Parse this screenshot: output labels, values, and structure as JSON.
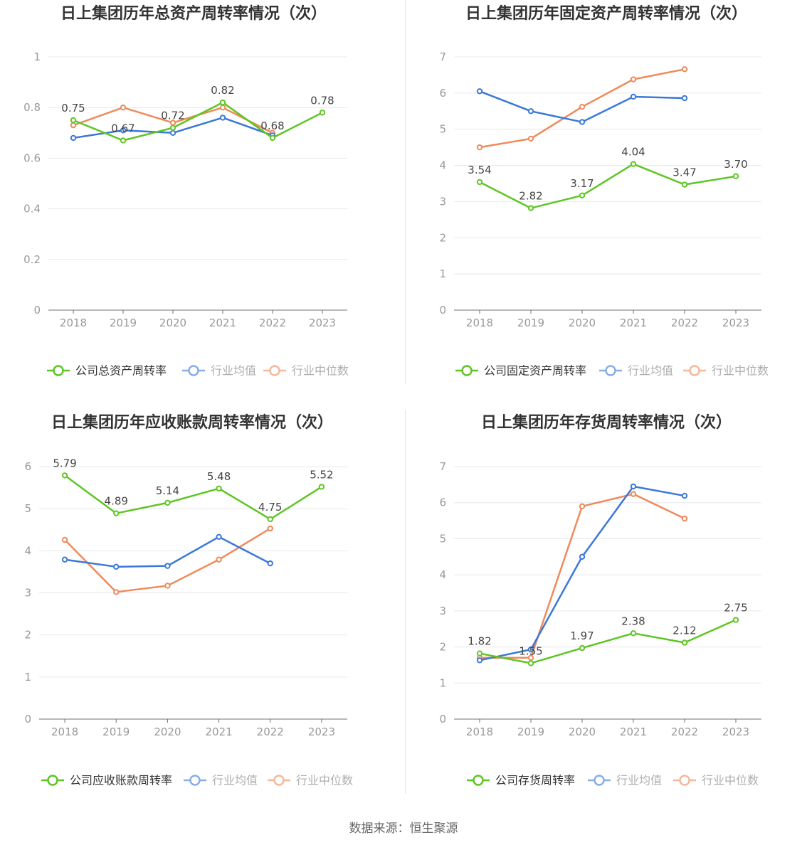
{
  "source": "数据来源：恒生聚源",
  "colors": {
    "company": "#5ec623",
    "industry_avg": "#3b78d8",
    "industry_median": "#ef8a5a",
    "grid": "#e6e8ef",
    "axis": "#999999",
    "title": "#333333"
  },
  "legend": {
    "industry_avg": "行业均值",
    "industry_median": "行业中位数"
  },
  "chart_data": [
    {
      "type": "line",
      "title": "日上集团历年总资产周转率情况（次）",
      "categories": [
        "2018",
        "2019",
        "2020",
        "2021",
        "2022",
        "2023"
      ],
      "ylim": [
        0,
        1
      ],
      "yticks": [
        "0",
        "0.2",
        "0.4",
        "0.6",
        "0.8",
        "1"
      ],
      "legend_placement": "bottom",
      "grid": true,
      "series": [
        {
          "name": "公司总资产周转率",
          "key": "company",
          "values": [
            0.75,
            0.67,
            0.72,
            0.82,
            0.68,
            0.78
          ],
          "labels": [
            "0.75",
            "0.67",
            "0.72",
            "0.82",
            "0.68",
            "0.78"
          ]
        },
        {
          "name": "行业均值",
          "key": "industry_avg",
          "values": [
            0.68,
            0.71,
            0.7,
            0.76,
            0.69,
            null
          ]
        },
        {
          "name": "行业中位数",
          "key": "industry_median",
          "values": [
            0.73,
            0.8,
            0.74,
            0.8,
            0.7,
            null
          ]
        }
      ]
    },
    {
      "type": "line",
      "title": "日上集团历年固定资产周转率情况（次）",
      "categories": [
        "2018",
        "2019",
        "2020",
        "2021",
        "2022",
        "2023"
      ],
      "ylim": [
        0,
        7
      ],
      "yticks": [
        "0",
        "1",
        "2",
        "3",
        "4",
        "5",
        "6",
        "7"
      ],
      "legend_placement": "bottom",
      "grid": true,
      "series": [
        {
          "name": "公司固定资产周转率",
          "key": "company",
          "values": [
            3.54,
            2.82,
            3.17,
            4.04,
            3.47,
            3.7
          ],
          "labels": [
            "3.54",
            "2.82",
            "3.17",
            "4.04",
            "3.47",
            "3.70"
          ]
        },
        {
          "name": "行业均值",
          "key": "industry_avg",
          "values": [
            6.05,
            5.5,
            5.2,
            5.9,
            5.86,
            null
          ]
        },
        {
          "name": "行业中位数",
          "key": "industry_median",
          "values": [
            4.5,
            4.74,
            5.62,
            6.38,
            6.66,
            null
          ]
        }
      ]
    },
    {
      "type": "line",
      "title": "日上集团历年应收账款周转率情况（次）",
      "categories": [
        "2018",
        "2019",
        "2020",
        "2021",
        "2022",
        "2023"
      ],
      "ylim": [
        0,
        6
      ],
      "yticks": [
        "0",
        "1",
        "2",
        "3",
        "4",
        "5",
        "6"
      ],
      "legend_placement": "bottom",
      "grid": true,
      "series": [
        {
          "name": "公司应收账款周转率",
          "key": "company",
          "values": [
            5.79,
            4.89,
            5.14,
            5.48,
            4.75,
            5.52
          ],
          "labels": [
            "5.79",
            "4.89",
            "5.14",
            "5.48",
            "4.75",
            "5.52"
          ]
        },
        {
          "name": "行业均值",
          "key": "industry_avg",
          "values": [
            3.79,
            3.62,
            3.64,
            4.33,
            3.7,
            null
          ]
        },
        {
          "name": "行业中位数",
          "key": "industry_median",
          "values": [
            4.26,
            3.02,
            3.17,
            3.79,
            4.53,
            null
          ]
        }
      ]
    },
    {
      "type": "line",
      "title": "日上集团历年存货周转率情况（次）",
      "categories": [
        "2018",
        "2019",
        "2020",
        "2021",
        "2022",
        "2023"
      ],
      "ylim": [
        0,
        7
      ],
      "yticks": [
        "0",
        "1",
        "2",
        "3",
        "4",
        "5",
        "6",
        "7"
      ],
      "legend_placement": "bottom",
      "grid": true,
      "series": [
        {
          "name": "公司存货周转率",
          "key": "company",
          "values": [
            1.82,
            1.55,
            1.97,
            2.38,
            2.12,
            2.75
          ],
          "labels": [
            "1.82",
            "1.55",
            "1.97",
            "2.38",
            "2.12",
            "2.75"
          ]
        },
        {
          "name": "行业均值",
          "key": "industry_avg",
          "values": [
            1.63,
            1.93,
            4.5,
            6.45,
            6.19,
            null
          ]
        },
        {
          "name": "行业中位数",
          "key": "industry_median",
          "values": [
            1.7,
            1.7,
            5.9,
            6.24,
            5.56,
            null
          ]
        }
      ]
    }
  ]
}
